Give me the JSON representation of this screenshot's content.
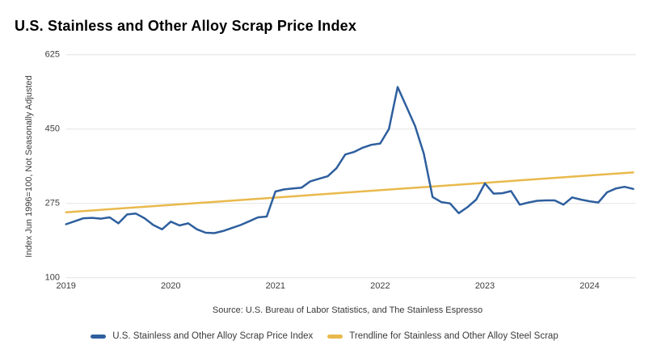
{
  "title": "U.S. Stainless and Other Alloy Scrap Price Index",
  "source_note": "Source: U.S. Bureau of Labor Statistics, and The Stainless Espresso",
  "y_axis": {
    "title": "Index Jun 1996=100, Not Seasonally Adjusted",
    "ticks": [
      100,
      275,
      450,
      625
    ]
  },
  "x_axis": {
    "ticks": [
      "2019",
      "2020",
      "2021",
      "2022",
      "2023",
      "2024"
    ]
  },
  "legend": {
    "items": [
      {
        "label": "U.S. Stainless and Other Alloy Scrap Price Index",
        "color": "#2e5f9e"
      },
      {
        "label": "Trendline for Stainless and Other Alloy Steel Scrap",
        "color": "#e9b94c"
      }
    ]
  },
  "colors": {
    "series_blue": "#2e5f9e",
    "trendline_gold": "#e9b94c",
    "gridline": "#e3e3e3",
    "tick_text": "#3d3d3d"
  },
  "chart_data": {
    "type": "line",
    "title": "U.S. Stainless and Other Alloy Scrap Price Index",
    "frequency": "monthly",
    "x_start": "2019-01",
    "x_end": "2024-06",
    "xlabel": "",
    "ylabel": "Index Jun 1996=100, Not Seasonally Adjusted",
    "ylim": [
      100,
      625
    ],
    "y_ticks": [
      100,
      275,
      450,
      625
    ],
    "x_tick_years": [
      2019,
      2020,
      2021,
      2022,
      2023,
      2024
    ],
    "grid": "horizontal",
    "legend_position": "bottom",
    "series": [
      {
        "name": "U.S. Stainless and Other Alloy Scrap Price Index",
        "color": "#2e5f9e",
        "values": [
          226,
          233,
          240,
          241,
          239,
          242,
          228,
          249,
          251,
          240,
          224,
          214,
          232,
          223,
          228,
          214,
          206,
          205,
          210,
          217,
          224,
          233,
          242,
          244,
          303,
          308,
          310,
          312,
          327,
          333,
          339,
          358,
          390,
          396,
          406,
          413,
          416,
          450,
          549,
          503,
          457,
          392,
          290,
          278,
          275,
          252,
          266,
          284,
          322,
          298,
          299,
          304,
          272,
          277,
          281,
          282,
          282,
          272,
          289,
          284,
          280,
          277,
          301,
          310,
          314,
          309
        ]
      },
      {
        "name": "Trendline for Stainless and Other Alloy Steel Scrap",
        "color": "#e9b94c",
        "is_trendline": true,
        "endpoint_values": [
          254,
          348
        ]
      }
    ]
  }
}
